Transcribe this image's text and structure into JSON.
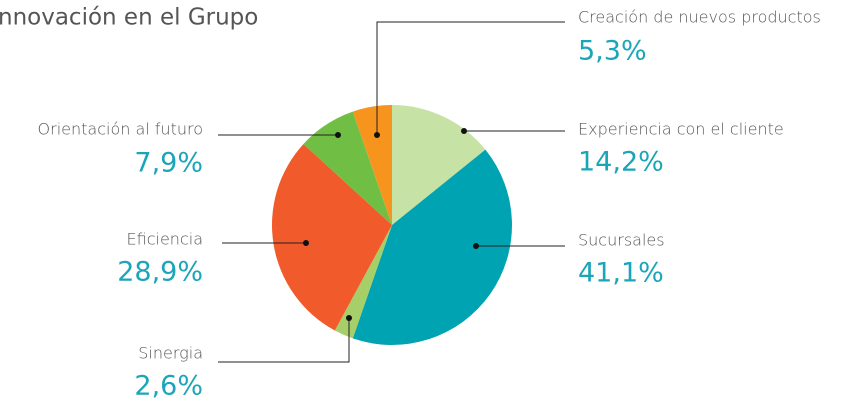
{
  "chart_data": {
    "type": "pie",
    "title": "nnovación en el Grupo",
    "categories": [
      "Experiencia con el cliente",
      "Sucursales",
      "Sinergia",
      "Eficiencia",
      "Orientación al futuro",
      "Creación de nuevos productos"
    ],
    "values": [
      14.2,
      41.1,
      2.6,
      28.9,
      7.9,
      5.3
    ],
    "value_labels": [
      "14,2%",
      "41,1%",
      "2,6%",
      "28,9%",
      "7,9%",
      "5,3%"
    ],
    "colors": [
      "#c6e2a4",
      "#00a3b1",
      "#a6cf6a",
      "#f15a2b",
      "#70bf44",
      "#f7941d"
    ]
  }
}
